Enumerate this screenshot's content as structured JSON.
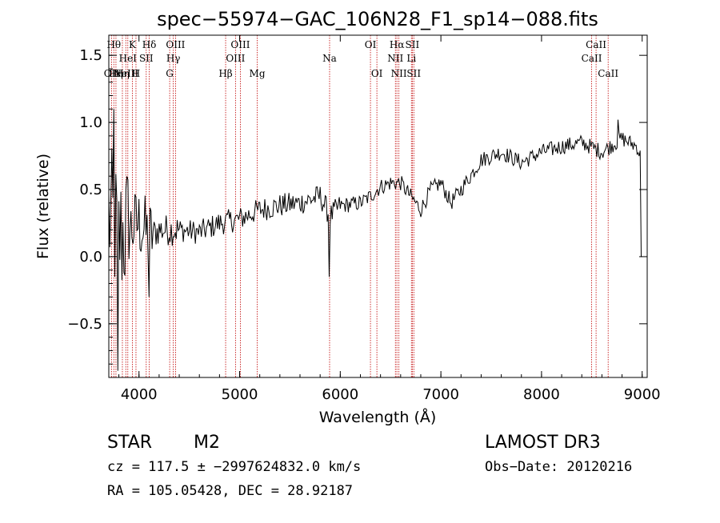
{
  "chart_data": {
    "type": "line",
    "title": "spec−55974−GAC_106N28_F1_sp14−088.fits",
    "xlabel": "Wavelength (Å)",
    "ylabel": "Flux (relative)",
    "xlim": [
      3700,
      9050
    ],
    "ylim": [
      -0.9,
      1.65
    ],
    "xticks": [
      {
        "v": 4000,
        "label": "4000"
      },
      {
        "v": 5000,
        "label": "5000"
      },
      {
        "v": 6000,
        "label": "6000"
      },
      {
        "v": 7000,
        "label": "7000"
      },
      {
        "v": 8000,
        "label": "8000"
      },
      {
        "v": 9000,
        "label": "9000"
      }
    ],
    "yticks": [
      {
        "v": -0.5,
        "label": "−0.5"
      },
      {
        "v": 0.0,
        "label": "0.0"
      },
      {
        "v": 0.5,
        "label": "0.5"
      },
      {
        "v": 1.0,
        "label": "1.0"
      },
      {
        "v": 1.5,
        "label": "1.5"
      }
    ],
    "spectral_lines": [
      {
        "wave": 3727,
        "label": "OII",
        "row": 0
      },
      {
        "wave": 3750,
        "label": "Hθ",
        "row": 2
      },
      {
        "wave": 3771,
        "label": "Hη",
        "row": 0
      },
      {
        "wave": 3835,
        "label": "Hη",
        "row": 0
      },
      {
        "wave": 3869,
        "label": "NeIII",
        "row": 0
      },
      {
        "wave": 3889,
        "label": "HeI",
        "row": 1
      },
      {
        "wave": 3934,
        "label": "K",
        "row": 2
      },
      {
        "wave": 3970,
        "label": "H",
        "row": 0
      },
      {
        "wave": 4072,
        "label": "SII",
        "row": 1
      },
      {
        "wave": 4102,
        "label": "Hδ",
        "row": 2
      },
      {
        "wave": 4305,
        "label": "G",
        "row": 0
      },
      {
        "wave": 4341,
        "label": "Hγ",
        "row": 1
      },
      {
        "wave": 4363,
        "label": "OIII",
        "row": 2
      },
      {
        "wave": 4861,
        "label": "Hβ",
        "row": 0
      },
      {
        "wave": 4959,
        "label": "OIII",
        "row": 1
      },
      {
        "wave": 5007,
        "label": "OIII",
        "row": 2
      },
      {
        "wave": 5175,
        "label": "Mg",
        "row": 0
      },
      {
        "wave": 5894,
        "label": "Na",
        "row": 1
      },
      {
        "wave": 6300,
        "label": "OI",
        "row": 2
      },
      {
        "wave": 6364,
        "label": "OI",
        "row": 0
      },
      {
        "wave": 6548,
        "label": "NII",
        "row": 1
      },
      {
        "wave": 6563,
        "label": "Hα",
        "row": 2
      },
      {
        "wave": 6583,
        "label": "NII",
        "row": 0
      },
      {
        "wave": 6707,
        "label": "Li",
        "row": 1
      },
      {
        "wave": 6716,
        "label": "SII",
        "row": 2
      },
      {
        "wave": 6731,
        "label": "SII",
        "row": 0
      },
      {
        "wave": 8498,
        "label": "CaII",
        "row": 1
      },
      {
        "wave": 8542,
        "label": "CaII",
        "row": 2
      },
      {
        "wave": 8662,
        "label": "CaII",
        "row": 0
      }
    ],
    "spectrum": {
      "x_start": 3700,
      "x_end": 9000,
      "step": 10,
      "anchors": [
        [
          3700,
          0.3
        ],
        [
          3800,
          0.15
        ],
        [
          3900,
          0.2
        ],
        [
          4000,
          0.25
        ],
        [
          4100,
          0.15
        ],
        [
          4200,
          0.2
        ],
        [
          4400,
          0.2
        ],
        [
          4600,
          0.18
        ],
        [
          4800,
          0.25
        ],
        [
          5000,
          0.28
        ],
        [
          5200,
          0.35
        ],
        [
          5400,
          0.38
        ],
        [
          5600,
          0.4
        ],
        [
          5800,
          0.45
        ],
        [
          5900,
          0.3
        ],
        [
          6000,
          0.38
        ],
        [
          6200,
          0.4
        ],
        [
          6300,
          0.45
        ],
        [
          6400,
          0.52
        ],
        [
          6500,
          0.55
        ],
        [
          6600,
          0.55
        ],
        [
          6700,
          0.45
        ],
        [
          6800,
          0.35
        ],
        [
          6900,
          0.5
        ],
        [
          7000,
          0.55
        ],
        [
          7100,
          0.4
        ],
        [
          7200,
          0.5
        ],
        [
          7400,
          0.72
        ],
        [
          7600,
          0.78
        ],
        [
          7800,
          0.7
        ],
        [
          8000,
          0.78
        ],
        [
          8200,
          0.82
        ],
        [
          8400,
          0.85
        ],
        [
          8600,
          0.78
        ],
        [
          8800,
          0.88
        ],
        [
          8950,
          0.82
        ],
        [
          9000,
          0.7
        ]
      ]
    }
  },
  "info": {
    "object_class": "STAR",
    "subclass": "M2",
    "survey": "LAMOST DR3",
    "cz": "cz = 117.5 ± −2997624832.0 km/s",
    "obs_date": "Obs−Date: 20120216",
    "radec": "RA = 105.05428, DEC =  28.92187"
  }
}
